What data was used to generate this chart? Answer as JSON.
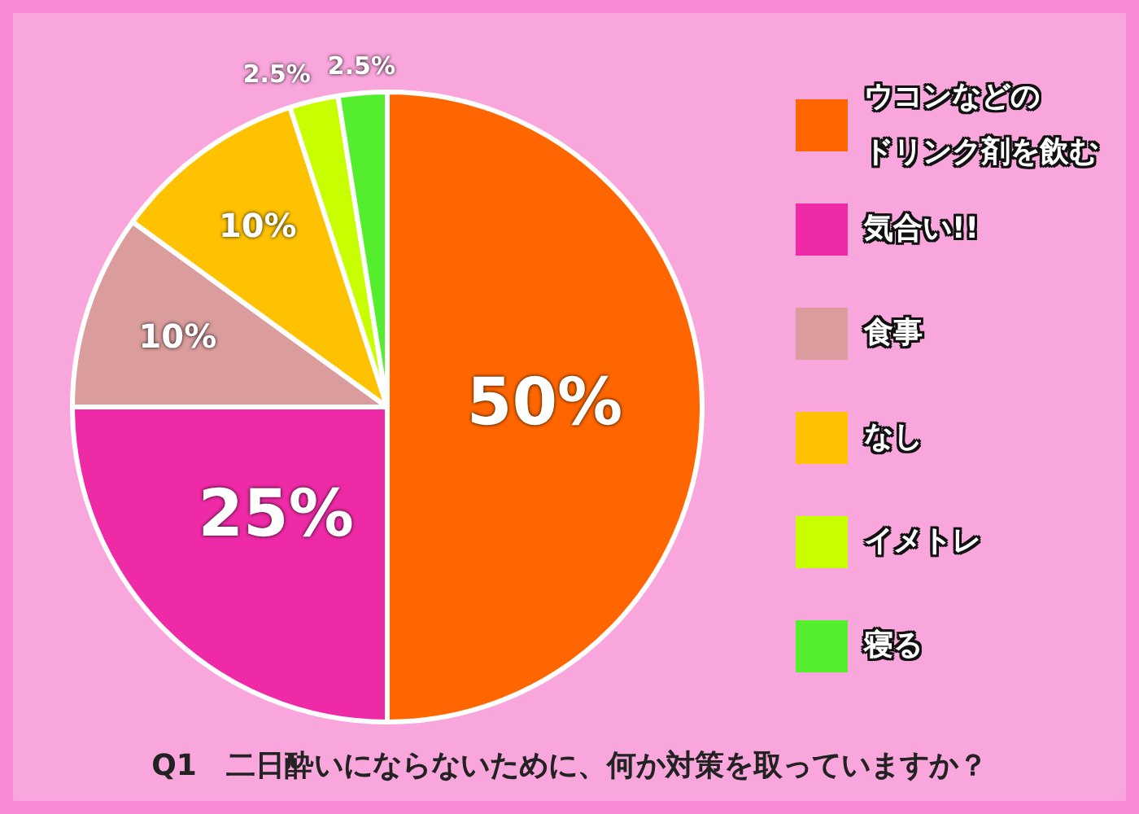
{
  "chart_data": {
    "type": "pie",
    "title": "Q1　二日酔いにならないために、何か対策を取っていますか？",
    "categories": [
      "ウコンなどのドリンク剤を飲む",
      "気合い!!",
      "食事",
      "なし",
      "イメトレ",
      "寝る"
    ],
    "values": [
      50,
      25,
      10,
      10,
      2.5,
      2.5
    ],
    "colors": [
      "#ff6600",
      "#ef2aa6",
      "#da9c9c",
      "#ffc200",
      "#c8ff00",
      "#55ee2e"
    ],
    "value_labels": [
      "50%",
      "25%",
      "10%",
      "10%",
      "2.5%",
      "2.5%"
    ],
    "legend": "right"
  }
}
